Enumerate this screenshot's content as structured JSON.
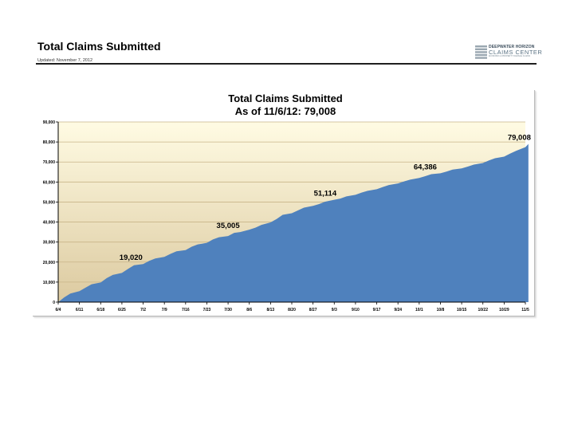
{
  "header": {
    "title": "Total Claims Submitted",
    "updated": "Updated:  November 7, 2012"
  },
  "logo": {
    "line1": "DEEPWATER HORIZON",
    "line2": "CLAIMS CENTER",
    "line3": "ECONOMIC & PROPERTY DAMAGE CLAIMS"
  },
  "colors": {
    "area_fill": "#4f81bd",
    "plot_bg_top": "#fffbe3",
    "plot_bg_bottom": "#dccaa0",
    "grid": "#c8b488"
  },
  "chart_data": {
    "type": "area",
    "title": "Total Claims Submitted",
    "subtitle": "As of 11/6/12:  79,008",
    "xlabel": "",
    "ylabel": "",
    "ylim": [
      0,
      90000
    ],
    "yticks": [
      0,
      10000,
      20000,
      30000,
      40000,
      50000,
      60000,
      70000,
      80000,
      90000
    ],
    "ytick_labels": [
      "0",
      "10,000",
      "20,000",
      "30,000",
      "40,000",
      "50,000",
      "60,000",
      "70,000",
      "80,000",
      "90,000"
    ],
    "x_tick_labels": [
      "6/4",
      "6/11",
      "6/18",
      "6/25",
      "7/2",
      "7/9",
      "7/16",
      "7/23",
      "7/30",
      "8/6",
      "8/13",
      "8/20",
      "8/27",
      "9/3",
      "9/10",
      "9/17",
      "9/24",
      "10/1",
      "10/8",
      "10/15",
      "10/22",
      "10/29",
      "11/5"
    ],
    "grid": true,
    "legend": "none",
    "series": [
      {
        "x": [
          "6/4",
          "6/6",
          "6/8",
          "6/11",
          "6/13",
          "6/15",
          "6/18",
          "6/20",
          "6/22",
          "6/25",
          "6/27",
          "6/29",
          "7/2",
          "7/4",
          "7/6",
          "7/9",
          "7/11",
          "7/13",
          "7/16",
          "7/18",
          "7/20",
          "7/23",
          "7/25",
          "7/27",
          "7/30",
          "8/1",
          "8/3",
          "8/6",
          "8/8",
          "8/10",
          "8/13",
          "8/15",
          "8/17",
          "8/20",
          "8/22",
          "8/24",
          "8/27",
          "8/29",
          "8/31",
          "9/3",
          "9/5",
          "9/7",
          "9/10",
          "9/12",
          "9/14",
          "9/17",
          "9/19",
          "9/21",
          "9/24",
          "9/26",
          "9/28",
          "10/1",
          "10/3",
          "10/5",
          "10/8",
          "10/10",
          "10/12",
          "10/15",
          "10/17",
          "10/19",
          "10/22",
          "10/24",
          "10/26",
          "10/29",
          "10/31",
          "11/2",
          "11/5",
          "11/6"
        ],
        "values": [
          0,
          2400,
          4300,
          5500,
          7200,
          8900,
          9800,
          12000,
          13600,
          14600,
          16600,
          18400,
          19020,
          20600,
          21800,
          22600,
          24100,
          25400,
          26000,
          27700,
          28800,
          29600,
          31300,
          32400,
          33000,
          34600,
          35005,
          36200,
          37200,
          38600,
          39800,
          41500,
          43600,
          44400,
          45800,
          47200,
          48100,
          49000,
          50200,
          51114,
          51700,
          52800,
          53600,
          54700,
          55600,
          56400,
          57500,
          58500,
          59300,
          60300,
          61200,
          62000,
          62900,
          63900,
          64386,
          65200,
          66200,
          66800,
          67700,
          68700,
          69500,
          70800,
          71900,
          72700,
          74200,
          75600,
          77400,
          79008
        ]
      }
    ],
    "annotations": [
      {
        "x": "6/28",
        "y": 19020,
        "label": "19,020"
      },
      {
        "x": "7/30",
        "y": 35005,
        "label": "35,005"
      },
      {
        "x": "8/31",
        "y": 51114,
        "label": "51,114"
      },
      {
        "x": "10/3",
        "y": 64386,
        "label": "64,386"
      },
      {
        "x": "11/3",
        "y": 79008,
        "label": "79,008"
      }
    ]
  }
}
